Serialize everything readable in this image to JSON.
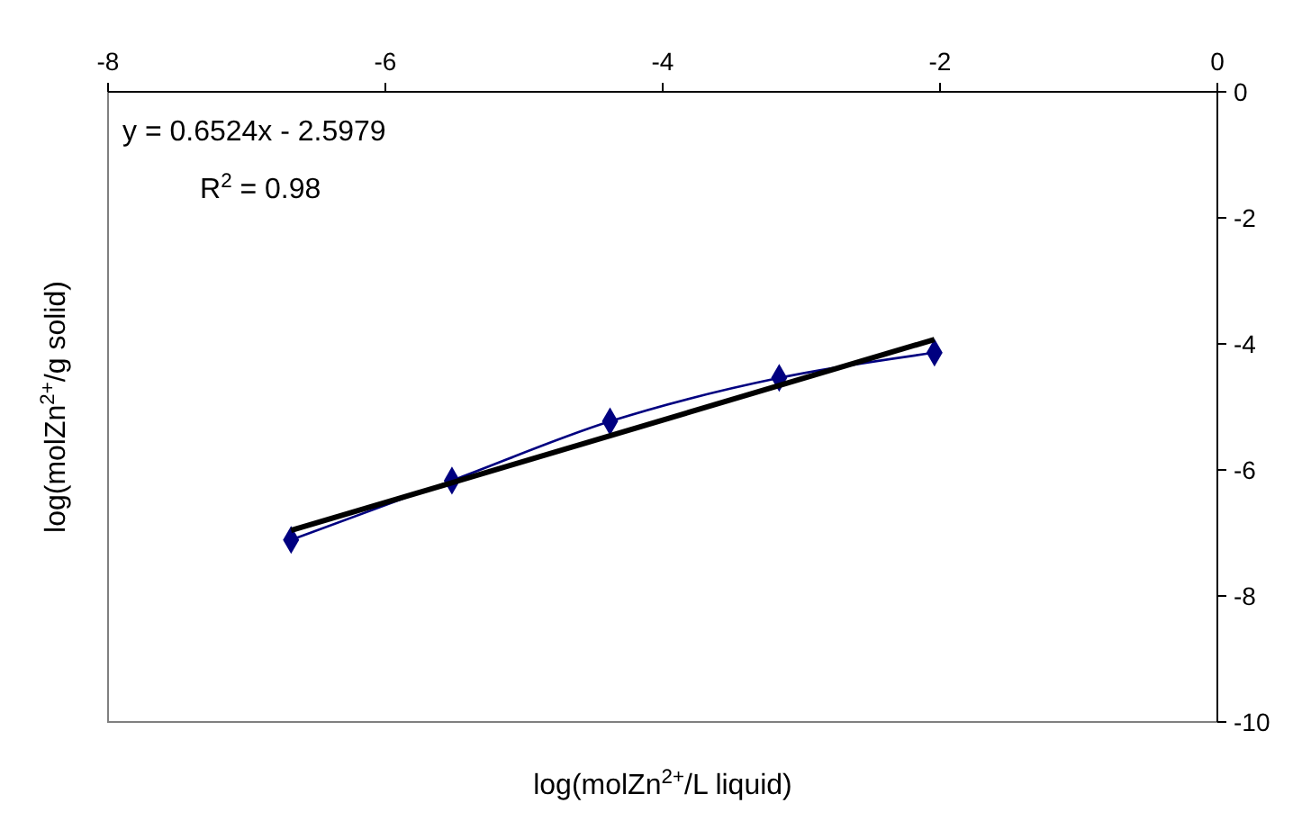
{
  "chart_data": {
    "type": "line",
    "xlabel": "log(molZn$^{2+}$/L liquid)",
    "ylabel": "log(molZn$^{2+}$/g solid)",
    "x": [
      -6.68,
      -5.52,
      -4.38,
      -3.16,
      -2.04
    ],
    "series": [
      {
        "color": "#000080",
        "values": [
          -7.11,
          -6.17,
          -5.23,
          -4.54,
          -4.14
        ],
        "marker": "diamond"
      },
      {
        "type": "line",
        "color": "#000000",
        "x": [
          -6.68,
          -2.04
        ],
        "values": [
          -6.96,
          -3.93
        ],
        "marker": "none"
      }
    ],
    "xlim": [
      -8,
      0
    ],
    "xticks": [
      -8,
      -6,
      -4,
      -2,
      0
    ],
    "ylim": [
      -10,
      0
    ],
    "yticks": [
      -10,
      -8,
      -6,
      -4,
      -2,
      0
    ],
    "annotations": [
      "y = 0.6524x - 2.5979",
      "R$^{2}$ = 0.98"
    ],
    "grid": false
  }
}
